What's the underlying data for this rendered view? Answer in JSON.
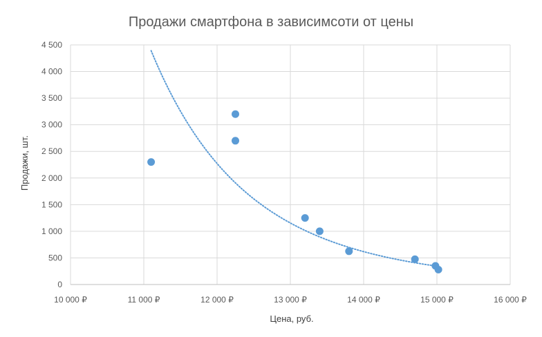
{
  "chart_data": {
    "type": "scatter",
    "title": "Продажи смартфона в зависимсоти от цены",
    "xlabel": "Цена, руб.",
    "ylabel": "Продажи, шт.",
    "xlim": [
      10000,
      16000
    ],
    "ylim": [
      0,
      4500
    ],
    "x_ticks": [
      10000,
      11000,
      12000,
      13000,
      14000,
      15000,
      16000
    ],
    "x_tick_labels": [
      "10 000 ₽",
      "11 000 ₽",
      "12 000 ₽",
      "13 000 ₽",
      "14 000 ₽",
      "15 000 ₽",
      "16 000 ₽"
    ],
    "y_ticks": [
      0,
      500,
      1000,
      1500,
      2000,
      2500,
      3000,
      3500,
      4000,
      4500
    ],
    "y_tick_labels": [
      "0",
      "500",
      "1 000",
      "1 500",
      "2 000",
      "2 500",
      "3 000",
      "3 500",
      "4 000",
      "4 500"
    ],
    "grid": true,
    "legend": "none",
    "colors": {
      "points": "#5b9bd5",
      "trendline": "#5b9bd5",
      "grid": "#d9d9d9",
      "text": "#595959"
    },
    "series": [
      {
        "points": [
          {
            "x": 11100,
            "y": 2300
          },
          {
            "x": 12250,
            "y": 3200
          },
          {
            "x": 12250,
            "y": 2700
          },
          {
            "x": 13200,
            "y": 1250
          },
          {
            "x": 13400,
            "y": 1000
          },
          {
            "x": 13800,
            "y": 625
          },
          {
            "x": 14700,
            "y": 475
          },
          {
            "x": 14980,
            "y": 350
          },
          {
            "x": 15020,
            "y": 280
          }
        ]
      }
    ],
    "trendline": {
      "type": "power",
      "style": "dotted",
      "x_range": [
        11100,
        15000
      ],
      "points": [
        {
          "x": 11100,
          "y": 4000
        },
        {
          "x": 12000,
          "y": 2330
        },
        {
          "x": 13000,
          "y": 1290
        },
        {
          "x": 14000,
          "y": 680
        },
        {
          "x": 15000,
          "y": 300
        }
      ]
    }
  }
}
